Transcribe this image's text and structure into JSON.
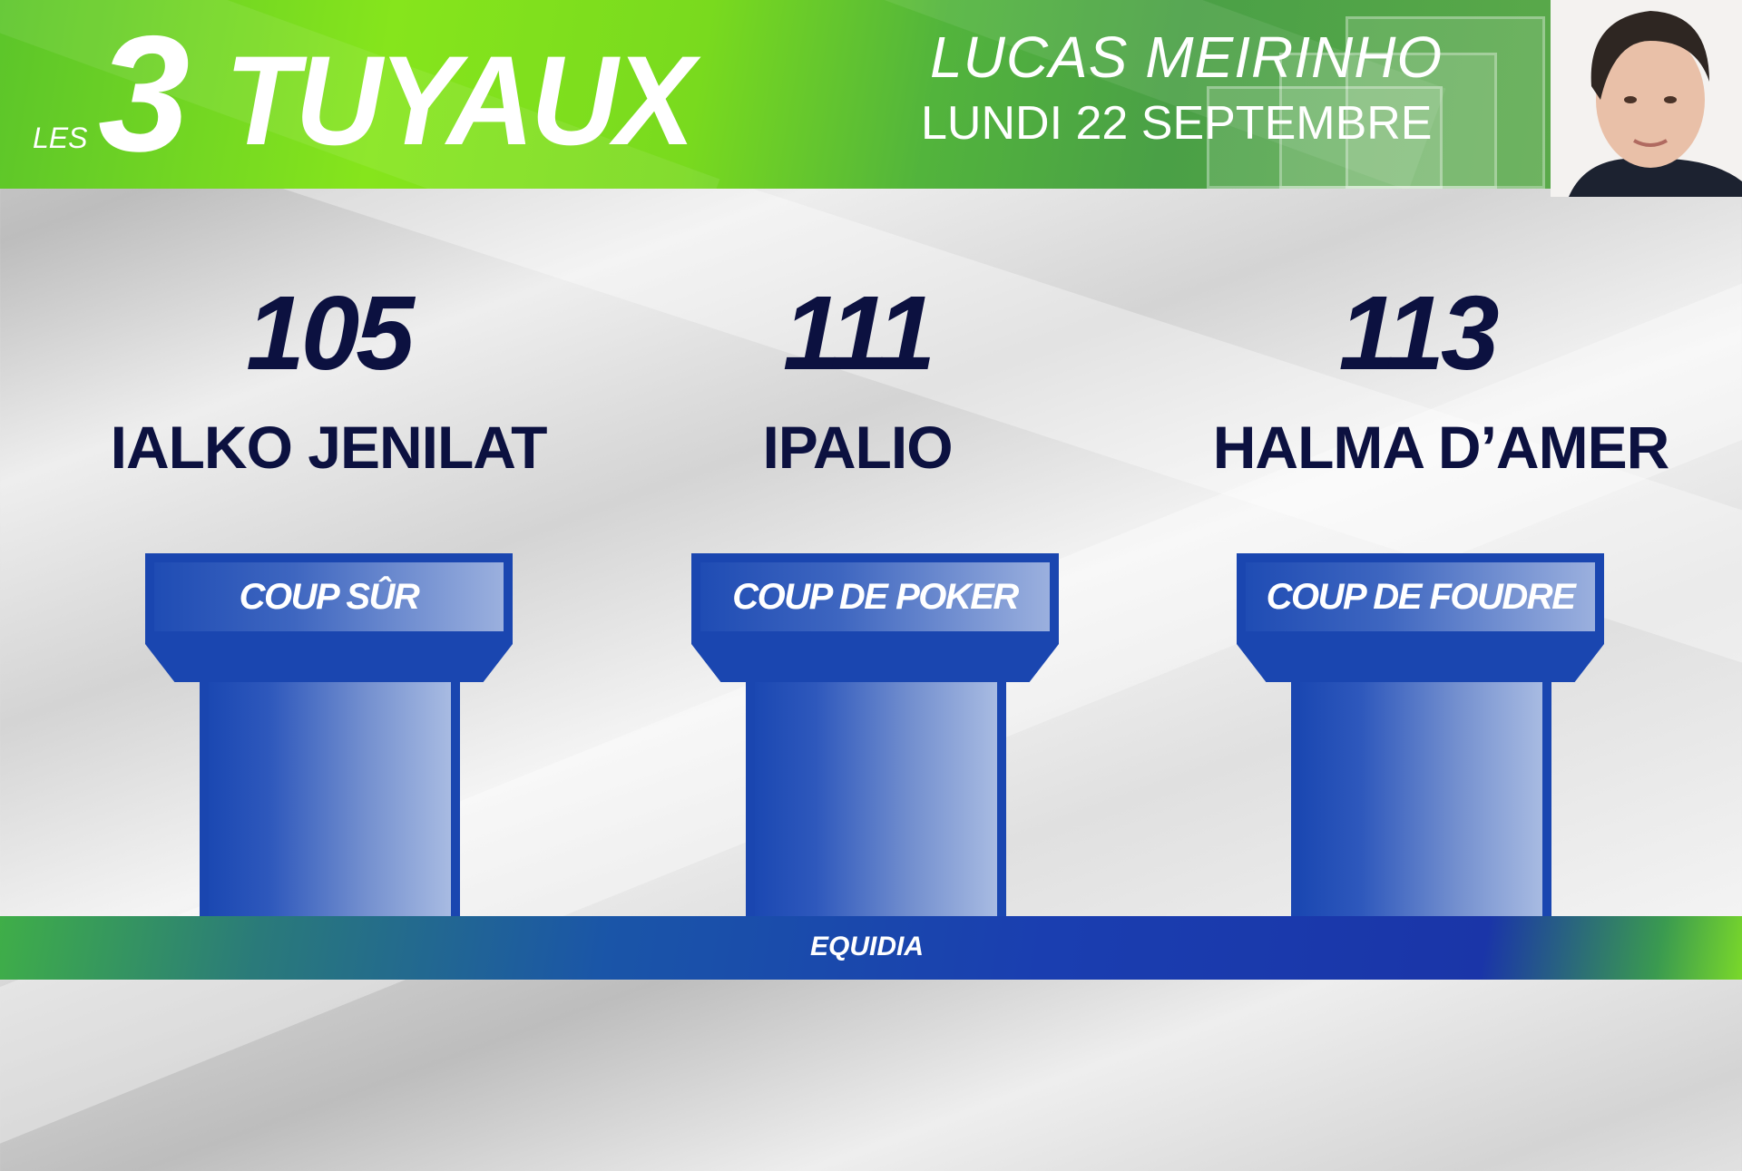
{
  "header": {
    "prefix": "LES",
    "number": "3",
    "title": "TUYAUX",
    "presenter": "LUCAS MEIRINHO",
    "date": "LUNDI 22 SEPTEMBRE"
  },
  "picks": [
    {
      "number": "105",
      "horse": "IALKO JENILAT",
      "label": "COUP SÛR"
    },
    {
      "number": "111",
      "horse": "IPALIO",
      "label": "COUP DE POKER"
    },
    {
      "number": "113",
      "horse": "HALMA D’AMER",
      "label": "COUP DE FOUDRE"
    }
  ],
  "footer": {
    "logo": "EQUIDIA"
  },
  "colors": {
    "green": "#79da1e",
    "navy": "#0c1140",
    "blue": "#1a46b0"
  }
}
